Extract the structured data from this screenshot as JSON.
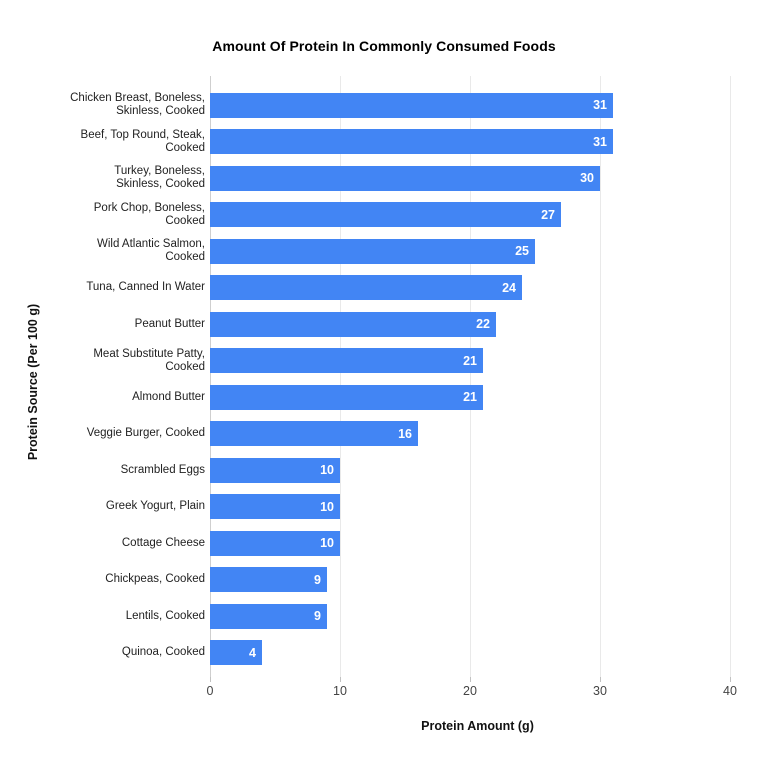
{
  "chart_data": {
    "type": "bar",
    "orientation": "horizontal",
    "title": "Amount Of Protein In Commonly Consumed Foods",
    "xlabel": "Protein Amount (g)",
    "ylabel": "Protein Source (Per 100 g)",
    "xlim": [
      0,
      40
    ],
    "xticks": [
      0,
      10,
      20,
      30,
      40
    ],
    "grid": true,
    "legend": "none",
    "bar_color": "#4285f4",
    "value_label_color": "#ffffff",
    "categories": [
      "Chicken Breast, Boneless,\nSkinless, Cooked",
      "Beef, Top Round, Steak,\nCooked",
      "Turkey, Boneless,\nSkinless, Cooked",
      "Pork Chop, Boneless,\nCooked",
      "Wild Atlantic Salmon,\nCooked",
      "Tuna, Canned In Water",
      "Peanut Butter",
      "Meat Substitute Patty,\nCooked",
      "Almond Butter",
      "Veggie Burger, Cooked",
      "Scrambled Eggs",
      "Greek Yogurt, Plain",
      "Cottage Cheese",
      "Chickpeas, Cooked",
      "Lentils, Cooked",
      "Quinoa, Cooked"
    ],
    "values": [
      31,
      31,
      30,
      27,
      25,
      24,
      22,
      21,
      21,
      16,
      10,
      10,
      10,
      9,
      9,
      4
    ]
  }
}
